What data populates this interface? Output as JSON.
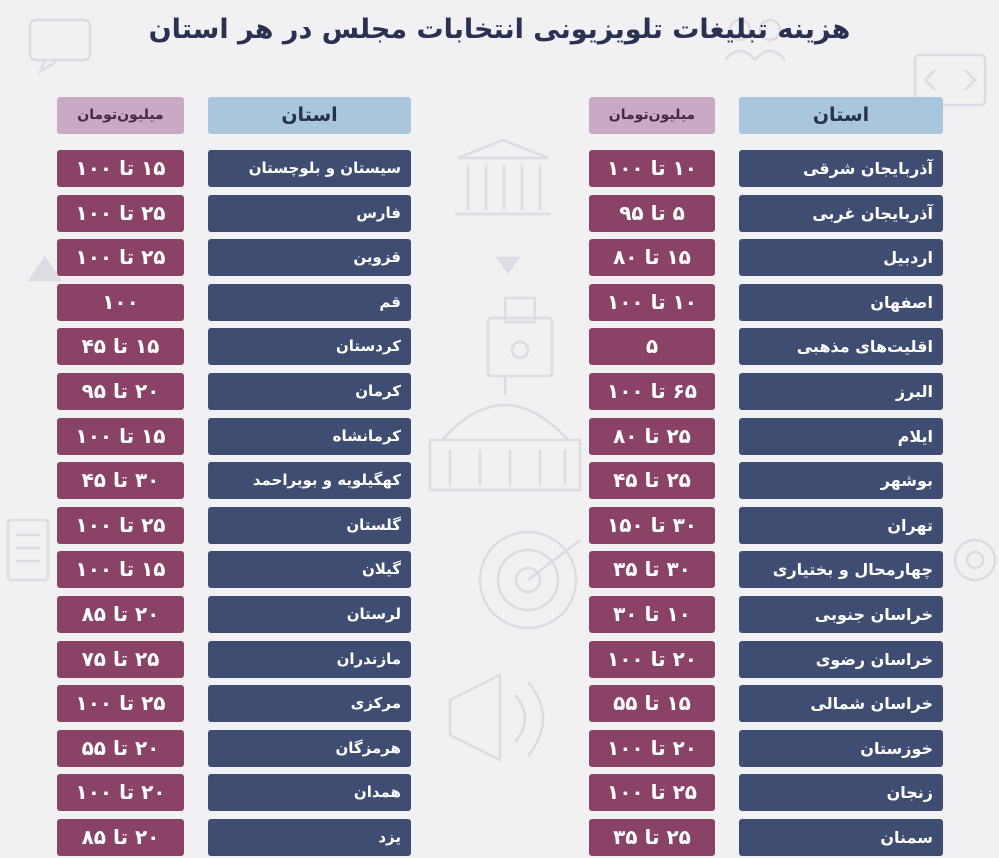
{
  "title": "هزینه تبلیغات تلویزیونی انتخابات مجلس در هر استان",
  "colors": {
    "background": "#f1f1f3",
    "title": "#2a3152",
    "province_cell": "#3f4d72",
    "amount_cell": "#8a4266",
    "province_header": "#a9c6dd",
    "amount_header": "#c9a9c3"
  },
  "right_table": {
    "province_header": "استان",
    "amount_header": "میلیون‌تومان",
    "rows": [
      {
        "province": "آذربایجان شرقی",
        "amount": "۱۰ تا ۱۰۰"
      },
      {
        "province": "آذربایجان غربی",
        "amount": "۵ تا ۹۵"
      },
      {
        "province": "اردبیل",
        "amount": "۱۵ تا ۸۰"
      },
      {
        "province": "اصفهان",
        "amount": "۱۰ تا ۱۰۰"
      },
      {
        "province": "اقلیت‌های مذهبی",
        "amount": "۵"
      },
      {
        "province": "البرز",
        "amount": "۶۵ تا ۱۰۰"
      },
      {
        "province": "ایلام",
        "amount": "۲۵ تا ۸۰"
      },
      {
        "province": "بوشهر",
        "amount": "۲۵ تا ۴۵"
      },
      {
        "province": "تهران",
        "amount": "۳۰ تا ۱۵۰"
      },
      {
        "province": "چهارمحال و بختیاری",
        "amount": "۳۰ تا ۳۵"
      },
      {
        "province": "خراسان جنوبی",
        "amount": "۱۰ تا ۳۰"
      },
      {
        "province": "خراسان رضوی",
        "amount": "۲۰ تا ۱۰۰"
      },
      {
        "province": "خراسان شمالی",
        "amount": "۱۵ تا ۵۵"
      },
      {
        "province": "خوزستان",
        "amount": "۲۰ تا ۱۰۰"
      },
      {
        "province": "زنجان",
        "amount": "۲۵ تا ۱۰۰"
      },
      {
        "province": "سمنان",
        "amount": "۲۵ تا ۳۵"
      }
    ]
  },
  "left_table": {
    "province_header": "استان",
    "amount_header": "میلیون‌تومان",
    "rows": [
      {
        "province": "سیستان و بلوچستان",
        "amount": "۱۵ تا ۱۰۰"
      },
      {
        "province": "فارس",
        "amount": "۲۵ تا ۱۰۰"
      },
      {
        "province": "قزوین",
        "amount": "۲۵ تا ۱۰۰"
      },
      {
        "province": "قم",
        "amount": "۱۰۰"
      },
      {
        "province": "کردستان",
        "amount": "۱۵ تا ۴۵"
      },
      {
        "province": "کرمان",
        "amount": "۲۰ تا ۹۵"
      },
      {
        "province": "کرمانشاه",
        "amount": "۱۵ تا ۱۰۰"
      },
      {
        "province": "کهگیلویه و بویراحمد",
        "amount": "۳۰ تا ۴۵"
      },
      {
        "province": "گلستان",
        "amount": "۲۵ تا ۱۰۰"
      },
      {
        "province": "گیلان",
        "amount": "۱۵ تا ۱۰۰"
      },
      {
        "province": "لرستان",
        "amount": "۲۰ تا ۸۵"
      },
      {
        "province": "مازندران",
        "amount": "۲۵ تا ۷۵"
      },
      {
        "province": "مرکزی",
        "amount": "۲۵ تا ۱۰۰"
      },
      {
        "province": "هرمزگان",
        "amount": "۲۰ تا ۵۵"
      },
      {
        "province": "همدان",
        "amount": "۲۰ تا ۱۰۰"
      },
      {
        "province": "یزد",
        "amount": "۲۰ تا ۸۵"
      }
    ]
  }
}
